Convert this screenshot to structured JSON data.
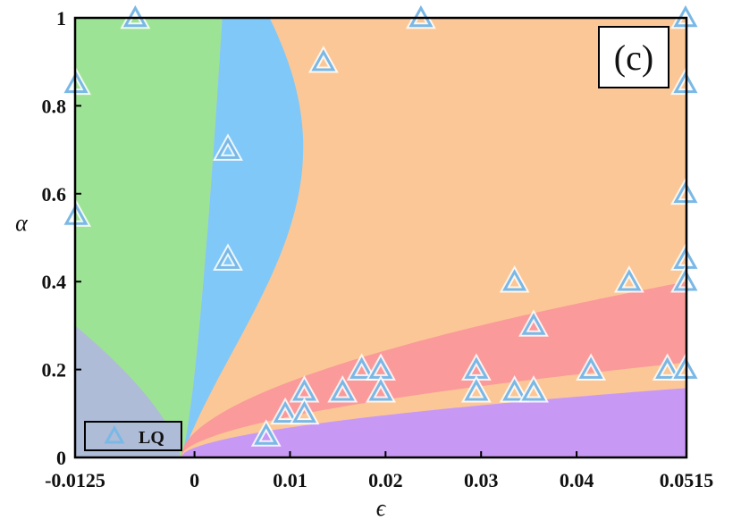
{
  "chart_data": {
    "type": "scatter",
    "panel_label": "(c)",
    "xlabel": "ϵ",
    "ylabel": "α",
    "xlim": [
      -0.0125,
      0.0515
    ],
    "ylim": [
      0,
      1
    ],
    "x_ticks": [
      -0.0125,
      0,
      0.01,
      0.02,
      0.03,
      0.04,
      0.0515
    ],
    "x_tick_labels": [
      "-0.0125",
      "0",
      "0.01",
      "0.02",
      "0.03",
      "0.04",
      "0.0515"
    ],
    "y_ticks": [
      0,
      0.2,
      0.4,
      0.6,
      0.8,
      1
    ],
    "y_tick_labels": [
      "0",
      "0.2",
      "0.4",
      "0.6",
      "0.8",
      "1"
    ],
    "grid": false,
    "legend": {
      "position": "bottom-left",
      "entries": [
        "LQ"
      ]
    },
    "colors": {
      "gray_region": "#aebcd7",
      "green_region": "#9de396",
      "blue_region": "#80c8f8",
      "orange_region": "#fcc796",
      "red_region": "#fa9a9a",
      "purple_region": "#c898f5",
      "marker": "#7ab8e6"
    },
    "regions": [
      {
        "color": "gray_region",
        "description_points": []
      },
      {
        "color": "green_region",
        "description_points": []
      },
      {
        "color": "blue_region",
        "description_points": []
      },
      {
        "color": "orange_region",
        "description_points": []
      },
      {
        "color": "red_region",
        "description_points": []
      },
      {
        "color": "purple_region",
        "description_points": []
      }
    ],
    "series": [
      {
        "name": "LQ",
        "marker": "triangle",
        "points": [
          {
            "x": -0.0062,
            "y": 1.0
          },
          {
            "x": 0.0237,
            "y": 1.0
          },
          {
            "x": 0.0514,
            "y": 1.0
          },
          {
            "x": -0.0124,
            "y": 0.85
          },
          {
            "x": 0.0514,
            "y": 0.85
          },
          {
            "x": 0.0135,
            "y": 0.9
          },
          {
            "x": 0.0035,
            "y": 0.7
          },
          {
            "x": -0.0124,
            "y": 0.55
          },
          {
            "x": 0.0514,
            "y": 0.6
          },
          {
            "x": 0.0035,
            "y": 0.45
          },
          {
            "x": 0.0514,
            "y": 0.45
          },
          {
            "x": 0.0514,
            "y": 0.4
          },
          {
            "x": 0.0335,
            "y": 0.4
          },
          {
            "x": 0.0455,
            "y": 0.4
          },
          {
            "x": 0.0355,
            "y": 0.3
          },
          {
            "x": 0.0175,
            "y": 0.2
          },
          {
            "x": 0.0195,
            "y": 0.2
          },
          {
            "x": 0.0295,
            "y": 0.2
          },
          {
            "x": 0.0415,
            "y": 0.2
          },
          {
            "x": 0.0495,
            "y": 0.2
          },
          {
            "x": 0.0514,
            "y": 0.2
          },
          {
            "x": 0.0115,
            "y": 0.15
          },
          {
            "x": 0.0155,
            "y": 0.15
          },
          {
            "x": 0.0195,
            "y": 0.15
          },
          {
            "x": 0.0295,
            "y": 0.15
          },
          {
            "x": 0.0335,
            "y": 0.15
          },
          {
            "x": 0.0355,
            "y": 0.15
          },
          {
            "x": 0.0095,
            "y": 0.1
          },
          {
            "x": 0.0115,
            "y": 0.1
          },
          {
            "x": 0.0075,
            "y": 0.05
          }
        ]
      }
    ]
  }
}
